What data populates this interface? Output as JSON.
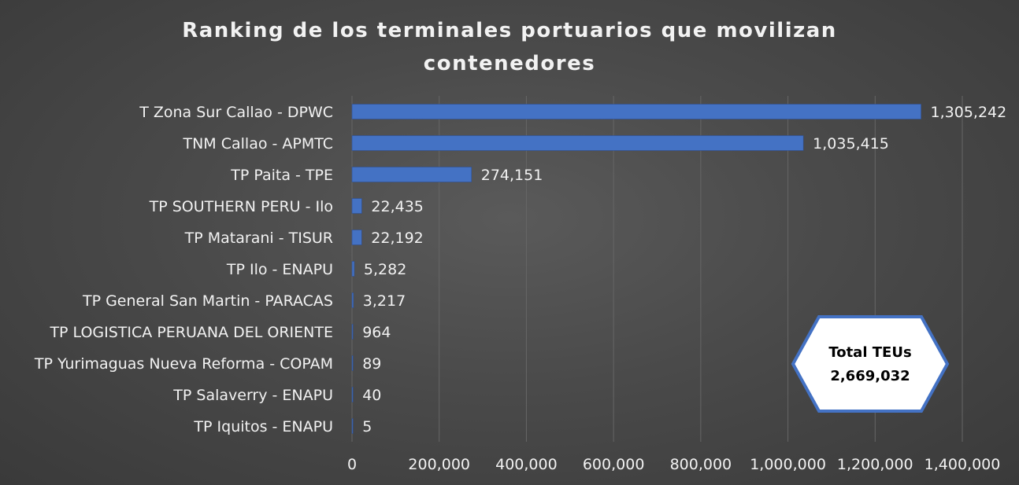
{
  "chart_data": {
    "type": "bar",
    "orientation": "horizontal",
    "title_lines": [
      "Ranking de los terminales portuarios que movilizan",
      "contenedores"
    ],
    "categories": [
      "T Zona Sur Callao - DPWC",
      "TNM Callao - APMTC",
      "TP Paita - TPE",
      "TP SOUTHERN PERU - Ilo",
      "TP Matarani - TISUR",
      "TP Ilo - ENAPU",
      "TP General San Martin - PARACAS",
      "TP LOGISTICA PERUANA DEL ORIENTE",
      "TP Yurimaguas Nueva Reforma - COPAM",
      "TP Salaverry - ENAPU",
      "TP Iquitos - ENAPU"
    ],
    "values": [
      1305242,
      1035415,
      274151,
      22435,
      22192,
      5282,
      3217,
      964,
      89,
      40,
      5
    ],
    "data_labels": [
      "1,305,242",
      "1,035,415",
      "274,151",
      "22,435",
      "22,192",
      "5,282",
      "3,217",
      "964",
      "89",
      "40",
      "5"
    ],
    "xticks": [
      0,
      200000,
      400000,
      600000,
      800000,
      1000000,
      1200000,
      1400000
    ],
    "xtick_labels": [
      "0",
      "200,000",
      "400,000",
      "600,000",
      "800,000",
      "1,000,000",
      "1,200,000",
      "1,400,000"
    ],
    "xlim": [
      0,
      1400000
    ],
    "grid": "vertical",
    "bar_color": "#4472c4",
    "text_color": "#f2f2f2",
    "grid_color": "#666666"
  },
  "annotation": {
    "line1": "Total TEUs",
    "line2": "2,669,032",
    "shape": "hexagon",
    "fill": "#ffffff",
    "border_color": "#4472c4"
  }
}
